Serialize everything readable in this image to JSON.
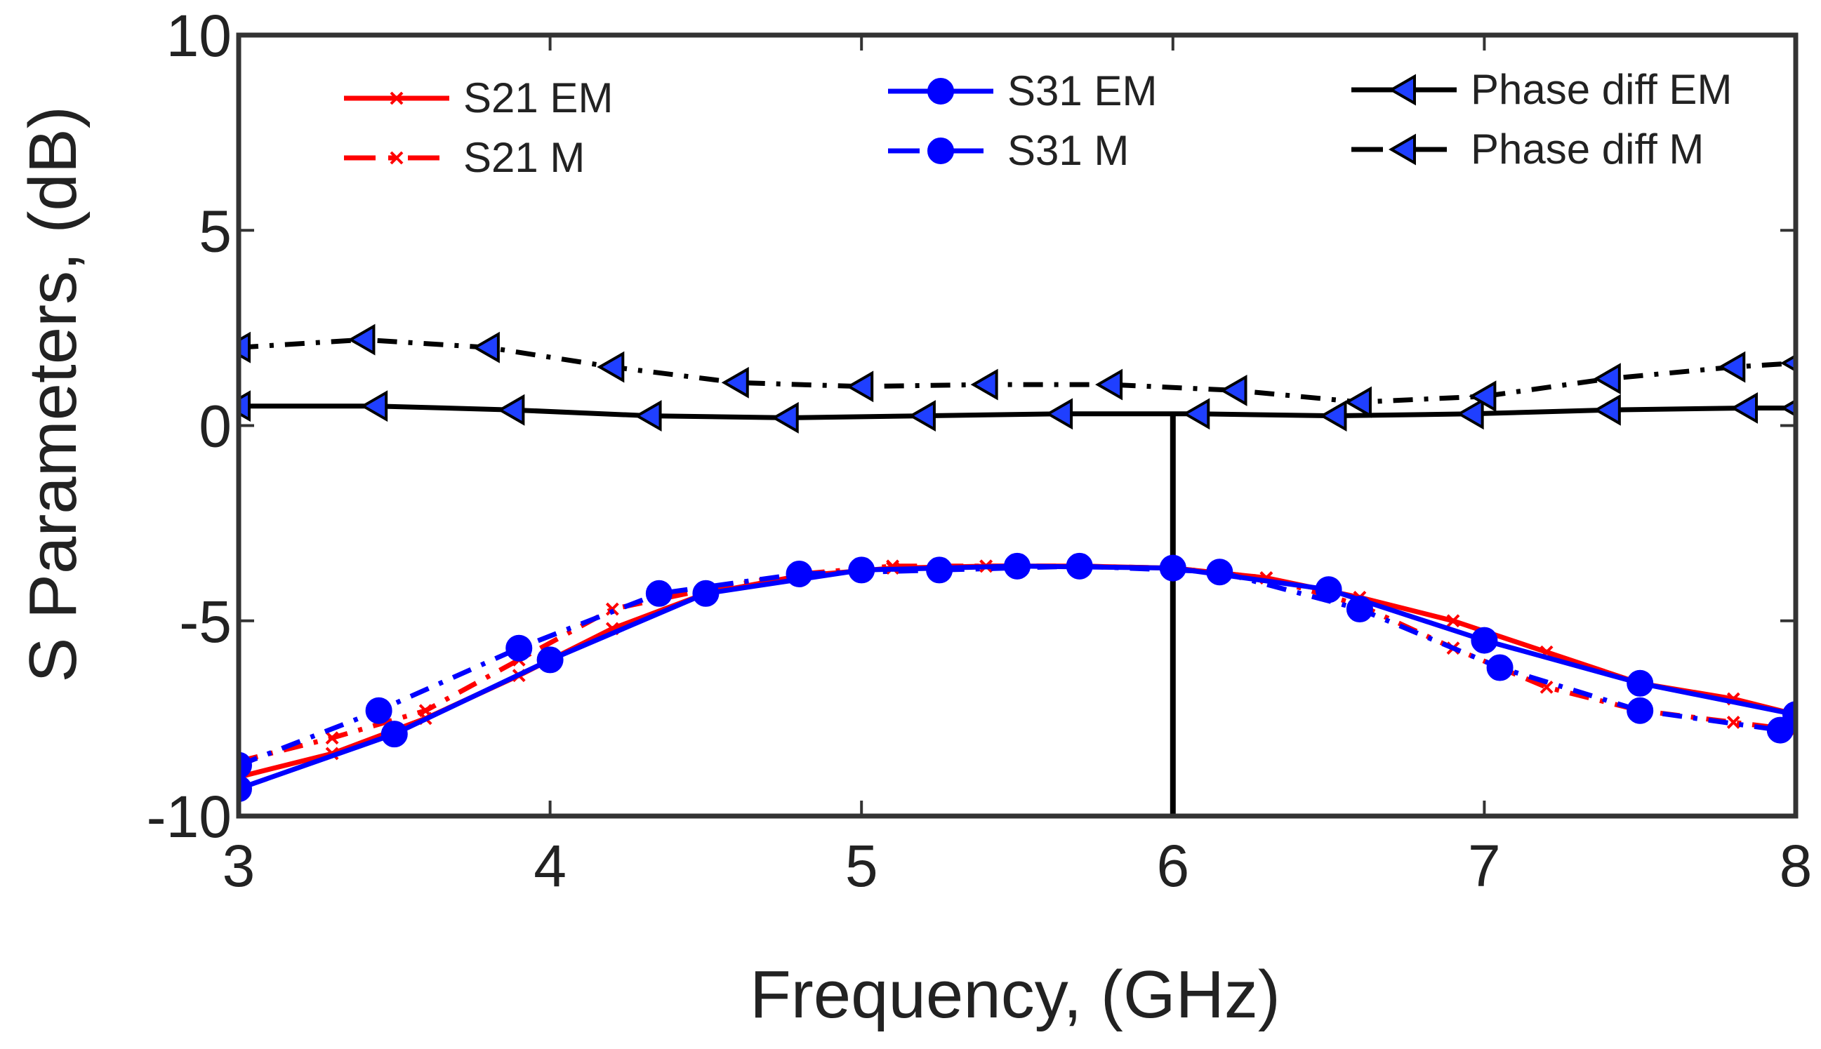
{
  "chart_data": {
    "type": "line",
    "title": "",
    "xlabel": "Frequency, (GHz)",
    "ylabel": "S Parameters, (dB)",
    "xlim": [
      3,
      8
    ],
    "ylim": [
      -10,
      10
    ],
    "xticks": [
      3,
      4,
      5,
      6,
      7,
      8
    ],
    "yticks": [
      -10,
      -5,
      0,
      5,
      10
    ],
    "xtick_labels": [
      "3",
      "4",
      "5",
      "6",
      "7",
      "8"
    ],
    "ytick_labels": [
      "-10",
      "-5",
      "0",
      "5",
      "10"
    ],
    "grid": false,
    "legend_position": "top",
    "reference_line": {
      "x": 6,
      "y_from": -10,
      "y_to": 0.3
    },
    "series": [
      {
        "name": "S21 EM",
        "color": "#ff0000",
        "dash": "solid",
        "marker": "x",
        "x": [
          3.0,
          3.3,
          3.6,
          3.9,
          4.2,
          4.5,
          4.8,
          5.1,
          5.4,
          5.7,
          6.0,
          6.3,
          6.6,
          6.9,
          7.2,
          7.5,
          7.8,
          8.0
        ],
        "y": [
          -9.0,
          -8.4,
          -7.5,
          -6.4,
          -5.2,
          -4.3,
          -3.85,
          -3.65,
          -3.6,
          -3.6,
          -3.65,
          -3.9,
          -4.4,
          -5.0,
          -5.8,
          -6.6,
          -7.0,
          -7.4
        ]
      },
      {
        "name": "S21 M",
        "color": "#ff0000",
        "dash": "dashdot",
        "marker": "x",
        "x": [
          3.0,
          3.3,
          3.6,
          3.9,
          4.2,
          4.5,
          4.8,
          5.1,
          5.4,
          5.7,
          6.0,
          6.3,
          6.6,
          6.9,
          7.2,
          7.5,
          7.8,
          8.0
        ],
        "y": [
          -8.6,
          -8.0,
          -7.3,
          -6.0,
          -4.7,
          -4.2,
          -3.8,
          -3.6,
          -3.6,
          -3.6,
          -3.65,
          -3.9,
          -4.6,
          -5.7,
          -6.7,
          -7.3,
          -7.6,
          -7.8
        ]
      },
      {
        "name": "S31 EM",
        "color": "#0000ff",
        "dash": "solid",
        "marker": "circle",
        "x": [
          3.0,
          3.5,
          4.0,
          4.5,
          5.0,
          5.5,
          6.0,
          6.5,
          7.0,
          7.5,
          8.0
        ],
        "y": [
          -9.3,
          -7.9,
          -6.0,
          -4.3,
          -3.7,
          -3.6,
          -3.65,
          -4.2,
          -5.5,
          -6.6,
          -7.4
        ]
      },
      {
        "name": "S31 M",
        "color": "#0000ff",
        "dash": "dashdot",
        "marker": "circle",
        "x": [
          3.0,
          3.45,
          3.9,
          4.35,
          4.8,
          5.25,
          5.7,
          6.15,
          6.6,
          7.05,
          7.5,
          7.95
        ],
        "y": [
          -8.7,
          -7.3,
          -5.7,
          -4.3,
          -3.8,
          -3.7,
          -3.6,
          -3.75,
          -4.7,
          -6.2,
          -7.3,
          -7.8
        ]
      },
      {
        "name": "Phase diff EM",
        "color": "#000000",
        "dash": "solid",
        "marker": "triangle-left",
        "x": [
          3.0,
          3.44,
          3.88,
          4.32,
          4.76,
          5.2,
          5.64,
          6.08,
          6.52,
          6.96,
          7.4,
          7.84,
          8.0
        ],
        "y": [
          0.5,
          0.5,
          0.4,
          0.25,
          0.2,
          0.25,
          0.3,
          0.3,
          0.25,
          0.3,
          0.4,
          0.45,
          0.45
        ]
      },
      {
        "name": "Phase diff M",
        "color": "#000000",
        "dash": "dashdot",
        "marker": "triangle-left",
        "x": [
          3.0,
          3.4,
          3.8,
          4.2,
          4.6,
          5.0,
          5.4,
          5.8,
          6.2,
          6.6,
          7.0,
          7.4,
          7.8,
          8.0
        ],
        "y": [
          2.0,
          2.2,
          2.0,
          1.5,
          1.1,
          1.0,
          1.05,
          1.05,
          0.9,
          0.6,
          0.75,
          1.2,
          1.5,
          1.6
        ]
      }
    ]
  }
}
